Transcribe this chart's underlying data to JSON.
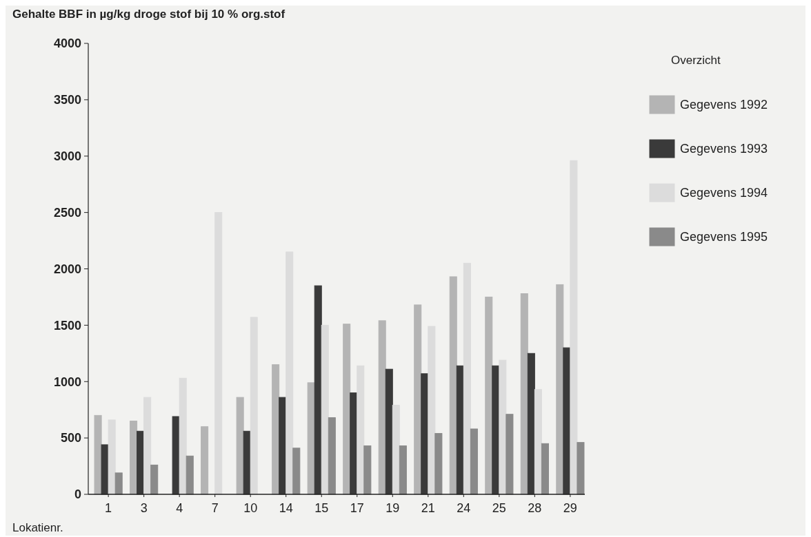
{
  "chart_data": {
    "type": "bar",
    "ylabel": "Gehalte BBF in µg/kg droge stof bij 10 % org.stof",
    "xlabel": "Lokatienr.",
    "legend_title": "Overzicht",
    "legend": "right",
    "grid": false,
    "categories": [
      "1",
      "3",
      "4",
      "7",
      "10",
      "14",
      "15",
      "17",
      "19",
      "21",
      "24",
      "25",
      "28",
      "29"
    ],
    "ylim": [
      0,
      4000
    ],
    "yticks": [
      0,
      500,
      1000,
      1500,
      2000,
      2500,
      3000,
      3500,
      4000
    ],
    "series": [
      {
        "name": "Gegevens 1992",
        "color": "#b4b4b4",
        "values": [
          700,
          650,
          null,
          600,
          860,
          1150,
          990,
          1510,
          1540,
          1680,
          1930,
          1750,
          1780,
          1860
        ]
      },
      {
        "name": "Gegevens 1993",
        "color": "#3a3a3a",
        "values": [
          440,
          560,
          690,
          null,
          560,
          860,
          1850,
          900,
          1110,
          1070,
          1140,
          1140,
          1250,
          1300
        ]
      },
      {
        "name": "Gegevens 1994",
        "color": "#dcdcdc",
        "values": [
          660,
          860,
          1030,
          2500,
          1570,
          2150,
          1500,
          1140,
          790,
          1490,
          2050,
          1190,
          930,
          2960
        ]
      },
      {
        "name": "Gegevens 1995",
        "color": "#8a8a8a",
        "values": [
          190,
          260,
          340,
          null,
          null,
          410,
          680,
          430,
          430,
          540,
          580,
          710,
          450,
          460
        ]
      }
    ]
  }
}
